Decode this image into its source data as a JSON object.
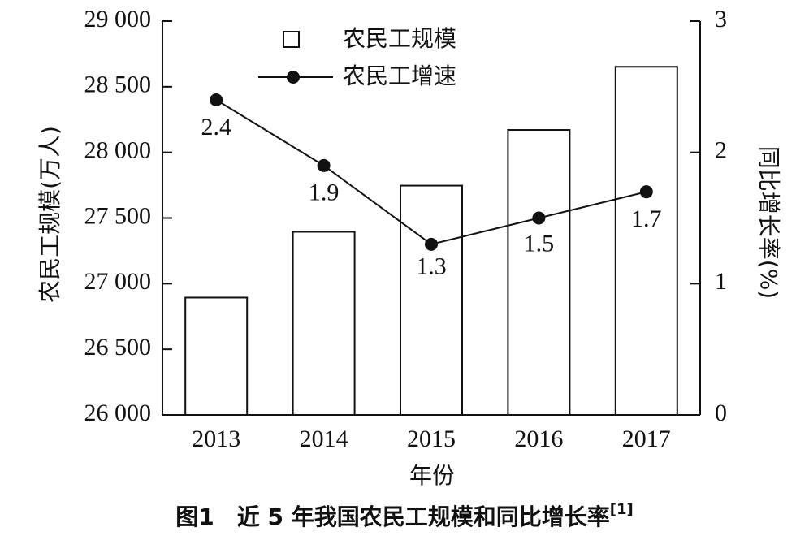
{
  "caption": {
    "text": "图1　近 5 年我国农民工规模和同比增长率",
    "ref": "[1]"
  },
  "chart_data": {
    "type": "bar",
    "categories": [
      "2013",
      "2014",
      "2015",
      "2016",
      "2017"
    ],
    "xlabel": "年份",
    "ylabel_left": "农民工规模(万人)",
    "ylabel_right": "同比增长率(%)",
    "ylim_left": [
      26000,
      29000
    ],
    "ylim_right": [
      0,
      3
    ],
    "left_ticks": [
      26000,
      26500,
      27000,
      27500,
      28000,
      28500,
      29000
    ],
    "left_tick_labels": [
      "26 000",
      "26 500",
      "27 000",
      "27 500",
      "28 000",
      "28 500",
      "29 000"
    ],
    "right_ticks": [
      0,
      1,
      2,
      3
    ],
    "right_tick_labels": [
      "0",
      "1",
      "2",
      "3"
    ],
    "grid": false,
    "legend_position": "top-left",
    "series": [
      {
        "name": "农民工规模",
        "kind": "bar",
        "axis": "left",
        "values": [
          26894,
          27395,
          27747,
          28171,
          28652
        ],
        "fill": "#ffffff",
        "stroke": "#111111"
      },
      {
        "name": "农民工增速",
        "kind": "line",
        "axis": "right",
        "values": [
          2.4,
          1.9,
          1.3,
          1.5,
          1.7
        ],
        "labels": [
          "2.4",
          "1.9",
          "1.3",
          "1.5",
          "1.7"
        ],
        "color": "#111111"
      }
    ]
  }
}
